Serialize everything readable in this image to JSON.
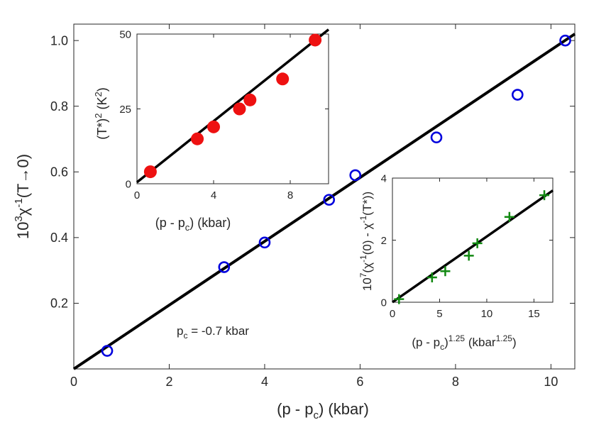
{
  "chart_data": [
    {
      "type": "scatter",
      "panel": "main",
      "xlabel": "(p - p",
      "xlabel_sub": "c",
      "xlabel_tail": ") (kbar)",
      "ylabel": "10",
      "ylabel_sup": "3",
      "ylabel_mid": "χ",
      "ylabel_sup2": "-1",
      "ylabel_tail": "(T→0)",
      "xlim": [
        0,
        10.5
      ],
      "ylim": [
        0,
        1.05
      ],
      "xticks": [
        "0",
        "2",
        "4",
        "6",
        "8",
        "10"
      ],
      "yticks": [
        "0.2",
        "0.4",
        "0.6",
        "0.8",
        "1.0"
      ],
      "annotation": "p",
      "annotation_sub": "c",
      "annotation_tail": " = -0.7 kbar",
      "series": [
        {
          "marker": "open-circle",
          "color": "#0000dd",
          "x": [
            0.7,
            3.15,
            4.0,
            5.35,
            5.9,
            7.6,
            9.3,
            10.3
          ],
          "y": [
            0.055,
            0.31,
            0.385,
            0.515,
            0.59,
            0.705,
            0.835,
            1.0
          ]
        }
      ],
      "fit_line": {
        "x": [
          0,
          10.5
        ],
        "y": [
          0,
          1.02
        ],
        "color": "#000000"
      }
    },
    {
      "type": "scatter",
      "panel": "inset-top-left",
      "xlabel": "(p - p",
      "xlabel_sub": "c",
      "xlabel_tail": ") (kbar)",
      "ylabel": "(T*)",
      "ylabel_sup": "2",
      "ylabel_tail": " (K",
      "ylabel_sup2": "2",
      "ylabel_end": ")",
      "xlim": [
        0,
        10
      ],
      "ylim": [
        0,
        50
      ],
      "xticks": [
        "0",
        "4",
        "8"
      ],
      "yticks": [
        "0",
        "25",
        "50"
      ],
      "series": [
        {
          "marker": "filled-circle",
          "color": "#ee1111",
          "x": [
            0.7,
            3.15,
            4.0,
            5.35,
            5.9,
            7.6,
            9.3
          ],
          "y": [
            4,
            15,
            19,
            25,
            28,
            35,
            48
          ]
        }
      ],
      "fit_line": {
        "x": [
          0,
          10
        ],
        "y": [
          0.5,
          51.5
        ],
        "color": "#000000"
      }
    },
    {
      "type": "scatter",
      "panel": "inset-bottom-right",
      "xlabel": "(p - p",
      "xlabel_sub": "c",
      "xlabel_tail": ")",
      "xlabel_sup": "1.25",
      "xlabel_unit": " (kbar",
      "xlabel_unit_sup": "1.25",
      "xlabel_end": ")",
      "ylabel": "10",
      "ylabel_sup": "7",
      "ylabel_a": "(χ",
      "ylabel_sup2": "-1",
      "ylabel_b": "(0) - χ",
      "ylabel_sup3": "-1",
      "ylabel_c": "(T*))",
      "xlim": [
        0,
        17
      ],
      "ylim": [
        0,
        4
      ],
      "xticks": [
        "0",
        "5",
        "10",
        "15"
      ],
      "yticks": [
        "0",
        "2",
        "4"
      ],
      "series": [
        {
          "marker": "plus",
          "color": "#118811",
          "x": [
            0.7,
            4.2,
            5.6,
            8.1,
            9.0,
            12.4,
            16.1
          ],
          "y": [
            0.1,
            0.8,
            1.0,
            1.5,
            1.9,
            2.75,
            3.45
          ]
        }
      ],
      "fit_line": {
        "x": [
          0,
          17
        ],
        "y": [
          0,
          3.6
        ],
        "color": "#000000"
      }
    }
  ]
}
